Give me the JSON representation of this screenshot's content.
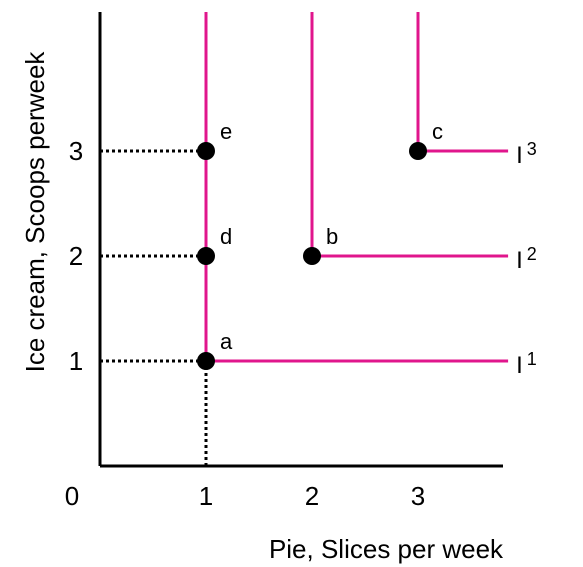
{
  "chart_data": {
    "type": "line",
    "title": "",
    "xlabel": "Pie, Slices per week",
    "ylabel": "Ice cream, Scoops perweek",
    "origin_label": "0",
    "x_ticks": [
      1,
      2,
      3
    ],
    "y_ticks": [
      1,
      2,
      3
    ],
    "xlim": [
      0,
      3.85
    ],
    "ylim": [
      0,
      4.3
    ],
    "grid": false,
    "curve_color": "#e0168c",
    "point_color": "#000000",
    "guide_color": "#000000",
    "curves": [
      {
        "label": "I",
        "sup": "1",
        "corner": [
          1,
          1
        ]
      },
      {
        "label": "I",
        "sup": "2",
        "corner": [
          2,
          2
        ]
      },
      {
        "label": "I",
        "sup": "3",
        "corner": [
          3,
          3
        ]
      }
    ],
    "points": [
      {
        "label": "a",
        "x": 1,
        "y": 1
      },
      {
        "label": "b",
        "x": 2,
        "y": 2
      },
      {
        "label": "c",
        "x": 3,
        "y": 3
      },
      {
        "label": "d",
        "x": 1,
        "y": 2
      },
      {
        "label": "e",
        "x": 1,
        "y": 3
      }
    ],
    "guides": [
      {
        "from": [
          0,
          1
        ],
        "to": [
          1,
          1
        ]
      },
      {
        "from": [
          0,
          2
        ],
        "to": [
          1,
          2
        ]
      },
      {
        "from": [
          0,
          3
        ],
        "to": [
          1,
          3
        ]
      },
      {
        "from": [
          1,
          0
        ],
        "to": [
          1,
          1
        ]
      }
    ]
  }
}
